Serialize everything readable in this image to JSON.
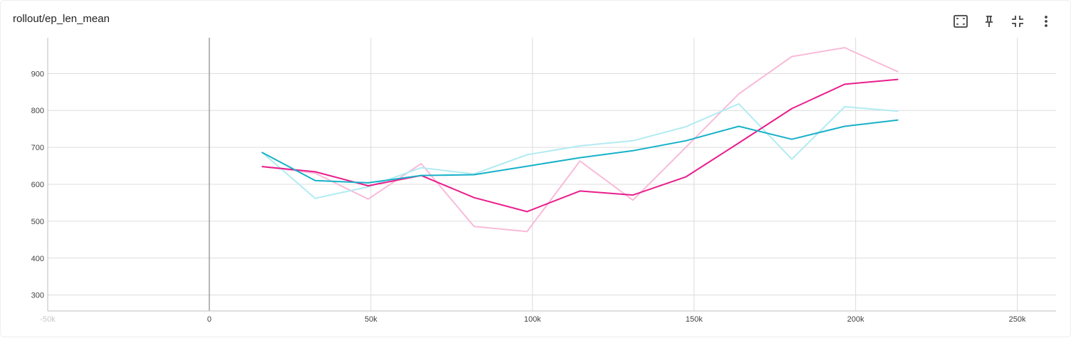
{
  "header": {
    "title": "rollout/ep_len_mean",
    "toolbar": [
      {
        "icon": "fit-to-data-icon"
      },
      {
        "icon": "pin-icon"
      },
      {
        "icon": "collapse-icon"
      },
      {
        "icon": "more-vert-icon"
      }
    ]
  },
  "chart_data": {
    "type": "line",
    "title": "rollout/ep_len_mean",
    "xlabel": "",
    "ylabel": "",
    "xlim": [
      -50000,
      262000
    ],
    "ylim": [
      257000,
      997000
    ],
    "ylim_units": "ep_len_mean x 1000",
    "x_ticks": [
      -50000,
      0,
      50000,
      100000,
      150000,
      200000,
      250000
    ],
    "x_tick_labels": [
      "-50k",
      "0",
      "50k",
      "100k",
      "150k",
      "200k",
      "250k"
    ],
    "y_ticks": [
      300,
      400,
      500,
      600,
      700,
      800,
      900
    ],
    "y_tick_labels": [
      "300",
      "400",
      "500",
      "600",
      "700",
      "800",
      "900"
    ],
    "grid": true,
    "legend": "none",
    "x": [
      16384,
      32768,
      49152,
      65536,
      81920,
      98304,
      114688,
      131072,
      147456,
      163840,
      180224,
      196608,
      212992
    ],
    "series": [
      {
        "color": "#f8bbd9",
        "values": [
          648,
          630,
          560,
          656,
          486,
          472,
          663,
          557,
          700,
          845,
          946,
          970,
          905
        ]
      },
      {
        "color": "#b2ebf2",
        "values": [
          686,
          562,
          593,
          645,
          628,
          680,
          704,
          718,
          756,
          818,
          668,
          810,
          798
        ]
      },
      {
        "color": "#e91e8c",
        "values": [
          648,
          634,
          596,
          624,
          564,
          526,
          582,
          571,
          620,
          712,
          805,
          871,
          884
        ]
      },
      {
        "color": "#17b1c8",
        "values": [
          686,
          610,
          604,
          624,
          626,
          649,
          672,
          691,
          718,
          757,
          722,
          757,
          774
        ]
      }
    ]
  }
}
